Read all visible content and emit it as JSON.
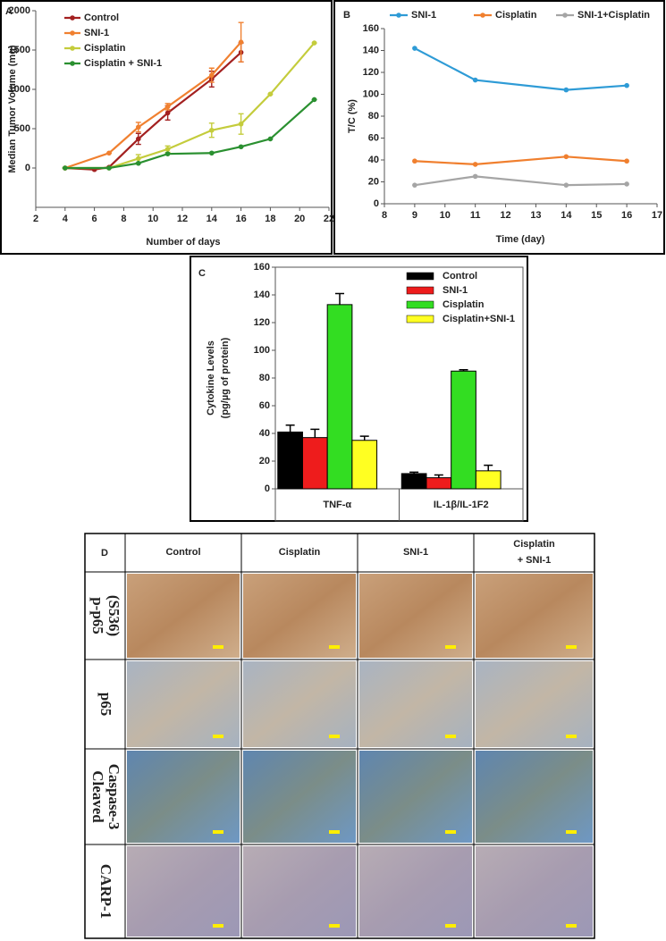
{
  "chart_data": [
    {
      "type": "line",
      "panel": "A",
      "ylabel": "Median Tumor Volume (mg)",
      "xlabel": "Number of days",
      "xlim": [
        2,
        22
      ],
      "xticks": [
        2,
        4,
        6,
        8,
        10,
        12,
        14,
        16,
        18,
        20,
        22
      ],
      "ylim": [
        -500,
        2000
      ],
      "yticks": [
        0,
        500,
        1000,
        1500,
        2000
      ],
      "legend": "upper left",
      "series": [
        {
          "name": "Control",
          "color": "#a32020",
          "x": [
            4,
            6,
            7,
            9,
            11,
            14,
            16
          ],
          "values": [
            0,
            -20,
            10,
            370,
            700,
            1130,
            1470
          ],
          "errors": [
            0,
            0,
            0,
            70,
            90,
            100,
            120
          ]
        },
        {
          "name": "SNI-1",
          "color": "#f08030",
          "x": [
            4,
            7,
            9,
            11,
            14,
            16
          ],
          "values": [
            0,
            190,
            520,
            780,
            1180,
            1600
          ],
          "errors": [
            0,
            0,
            60,
            40,
            90,
            250
          ]
        },
        {
          "name": "Cisplatin",
          "color": "#c4cc3c",
          "x": [
            4,
            7,
            9,
            11,
            14,
            16,
            18,
            21
          ],
          "values": [
            0,
            0,
            120,
            240,
            480,
            560,
            940,
            1590
          ],
          "errors": [
            0,
            0,
            50,
            40,
            90,
            130,
            0,
            0
          ]
        },
        {
          "name": "Cisplatin + SNI-1",
          "color": "#2a9030",
          "x": [
            4,
            7,
            9,
            11,
            14,
            16,
            18,
            21
          ],
          "values": [
            0,
            0,
            60,
            180,
            190,
            270,
            370,
            870
          ],
          "errors": [
            0,
            0,
            0,
            0,
            0,
            0,
            0,
            0
          ]
        }
      ]
    },
    {
      "type": "line",
      "panel": "B",
      "ylabel": "T/C (%)",
      "xlabel": "Time (day)",
      "xlim": [
        8,
        17
      ],
      "xticks": [
        8,
        9,
        10,
        11,
        12,
        13,
        14,
        15,
        16,
        17
      ],
      "ylim": [
        0,
        160
      ],
      "yticks": [
        0,
        20,
        40,
        60,
        80,
        100,
        120,
        140,
        160
      ],
      "legend": "top",
      "series": [
        {
          "name": "SNI-1",
          "color": "#2e9bd6",
          "x": [
            9,
            11,
            14,
            16
          ],
          "values": [
            142,
            113,
            104,
            108
          ]
        },
        {
          "name": "Cisplatin",
          "color": "#f07f2e",
          "x": [
            9,
            11,
            14,
            16
          ],
          "values": [
            39,
            36,
            43,
            39
          ]
        },
        {
          "name": "SNI-1+Cisplatin",
          "color": "#a5a5a5",
          "x": [
            9,
            11,
            14,
            16
          ],
          "values": [
            17,
            25,
            17,
            18
          ]
        }
      ]
    },
    {
      "type": "bar",
      "panel": "C",
      "ylabel": [
        "Cytokine Levels",
        "(pg/µg of protein)"
      ],
      "categories": [
        "TNF-α",
        "IL-1β/IL-1F2"
      ],
      "ylim": [
        0,
        160
      ],
      "yticks": [
        0,
        20,
        40,
        60,
        80,
        100,
        120,
        140,
        160
      ],
      "legend": "upper right",
      "series": [
        {
          "name": "Control",
          "color": "#000000",
          "values": [
            41,
            11
          ],
          "errors": [
            5,
            1
          ]
        },
        {
          "name": "SNI-1",
          "color": "#ee1c1c",
          "values": [
            37,
            8
          ],
          "errors": [
            6,
            2
          ]
        },
        {
          "name": "Cisplatin",
          "color": "#33dd22",
          "values": [
            133,
            85
          ],
          "errors": [
            8,
            1
          ]
        },
        {
          "name": "Cisplatin+SNI-1",
          "color": "#ffff22",
          "values": [
            35,
            13
          ],
          "errors": [
            3,
            4
          ]
        }
      ]
    }
  ],
  "panel_d": {
    "label": "D",
    "columns": [
      [
        "Control"
      ],
      [
        "Cisplatin"
      ],
      [
        "SNI-1"
      ],
      [
        "Cisplatin",
        "+ SNI-1"
      ]
    ],
    "rows": [
      [
        "p-p65",
        "(S536)"
      ],
      [
        "p65"
      ],
      [
        "Cleaved",
        "Caspase-3"
      ],
      [
        "CARP-1"
      ]
    ]
  }
}
